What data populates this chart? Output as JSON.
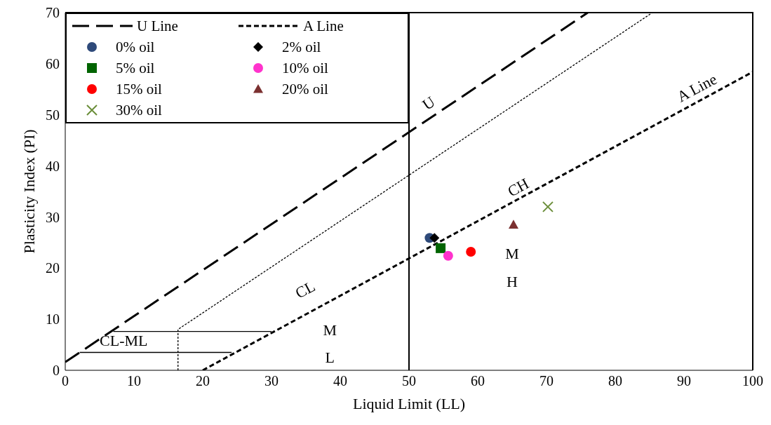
{
  "chart_data": {
    "type": "scatter",
    "xlabel": "Liquid Limit (LL)",
    "ylabel": "Plasticity Index (PI)",
    "xlim": [
      0,
      100
    ],
    "xticks": [
      0,
      10,
      20,
      30,
      40,
      50,
      60,
      70,
      80,
      90,
      100
    ],
    "ylim": [
      0,
      70
    ],
    "yticks": [
      0,
      10,
      20,
      30,
      40,
      50,
      60,
      70
    ],
    "legend": "top left",
    "series": [
      {
        "name": "U Line",
        "type": "line",
        "line_style": "dashed",
        "color": "#000000",
        "x": [
          0,
          76
        ],
        "values": [
          1.6,
          70
        ]
      },
      {
        "name": "A Line",
        "type": "line",
        "line_style": "dotted",
        "color": "#000000",
        "x": [
          20,
          100
        ],
        "values": [
          0,
          58.4
        ]
      },
      {
        "type": "line",
        "line_style": "dotted",
        "color": "#000000",
        "x": [
          16.4,
          16.4,
          85.4
        ],
        "values": [
          0,
          8,
          70
        ]
      },
      {
        "type": "line",
        "line_style": "solid",
        "color": "#000000",
        "x": [
          7,
          30
        ],
        "values": [
          7.6,
          7.6
        ]
      },
      {
        "type": "line",
        "line_style": "solid",
        "color": "#000000",
        "x": [
          2.1,
          24.2
        ],
        "values": [
          3.5,
          3.5
        ]
      },
      {
        "name": "0% oil",
        "marker": "circle",
        "color": "#2e4a7a",
        "x": [
          53
        ],
        "values": [
          25.9
        ]
      },
      {
        "name": "2% oil",
        "marker": "diamond",
        "color": "#000000",
        "x": [
          53.7
        ],
        "values": [
          25.9
        ]
      },
      {
        "name": "5% oil",
        "marker": "square",
        "color": "#006400",
        "x": [
          54.6
        ],
        "values": [
          23.9
        ]
      },
      {
        "name": "10% oil",
        "marker": "circle",
        "color": "#ff33cc",
        "x": [
          55.7
        ],
        "values": [
          22.4
        ]
      },
      {
        "name": "15% oil",
        "marker": "circle",
        "color": "#ff0000",
        "x": [
          59
        ],
        "values": [
          23.2
        ]
      },
      {
        "name": "20% oil",
        "marker": "triangle",
        "color": "#7b3030",
        "x": [
          65.2
        ],
        "values": [
          28.5
        ]
      },
      {
        "name": "30% oil",
        "marker": "cross",
        "color": "#6b8e3a",
        "x": [
          70.2
        ],
        "values": [
          32
        ]
      }
    ],
    "ref_lines": [
      {
        "axis": "x",
        "value": 50,
        "color": "#000000",
        "line_style": "solid"
      }
    ],
    "annotations": [
      "U",
      "A Line",
      "CH",
      "CL",
      "CL-ML",
      "M",
      "L",
      "M",
      "H"
    ]
  }
}
